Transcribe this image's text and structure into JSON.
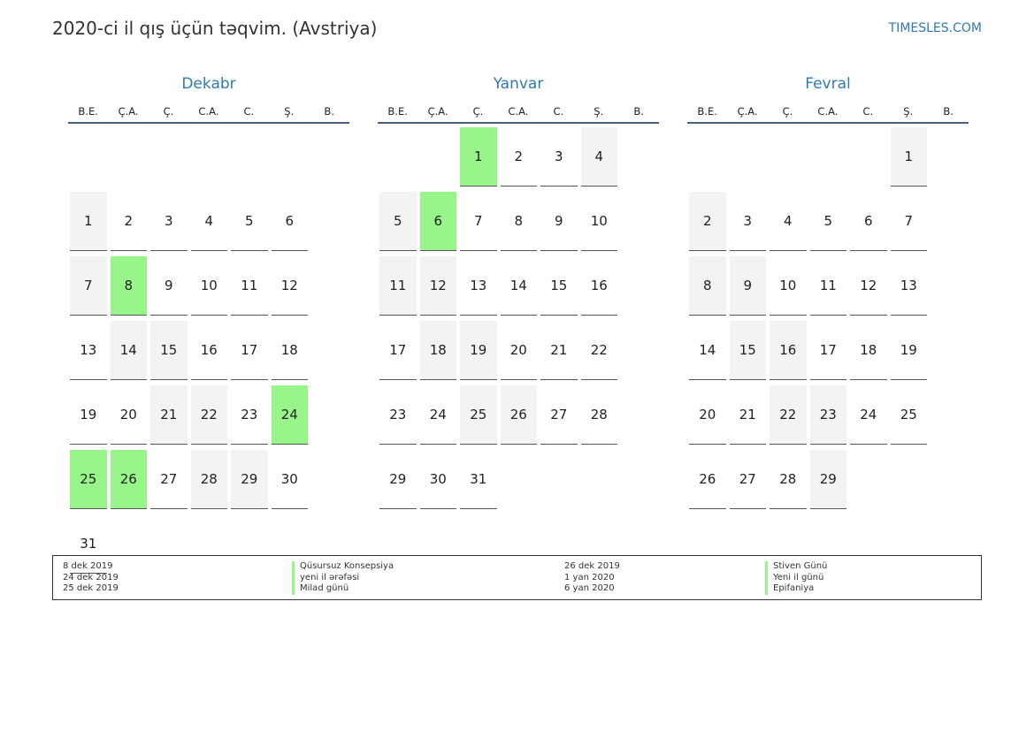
{
  "header": {
    "title": "2020-ci il qış üçün təqvim. (Avstriya)",
    "site": "TIMESLES.COM"
  },
  "weekdays": [
    "B.E.",
    "Ç.A.",
    "Ç.",
    "C.A.",
    "C.",
    "Ş.",
    "B."
  ],
  "months": [
    {
      "name": "Dekabr",
      "start_offset": 6,
      "days": 31,
      "holidays": [
        8,
        24,
        25,
        26
      ]
    },
    {
      "name": "Yanvar",
      "start_offset": 2,
      "days": 31,
      "holidays": [
        1,
        6
      ]
    },
    {
      "name": "Fevral",
      "start_offset": 5,
      "days": 29,
      "holidays": []
    }
  ],
  "legend": {
    "left": [
      {
        "date": "8 dek 2019",
        "name": "Qüsursuz Konsepsiya"
      },
      {
        "date": "24 dek 2019",
        "name": "yeni il ərəfəsi"
      },
      {
        "date": "25 dek 2019",
        "name": "Milad günü"
      }
    ],
    "right": [
      {
        "date": "26 dek 2019",
        "name": "Stiven Günü"
      },
      {
        "date": "1 yan 2020",
        "name": "Yeni il günü"
      },
      {
        "date": "6 yan 2020",
        "name": "Epifaniya"
      }
    ]
  },
  "colors": {
    "holiday": "#98f58a",
    "weekend": "#f3f3f3",
    "accent": "#2e7ab8"
  }
}
